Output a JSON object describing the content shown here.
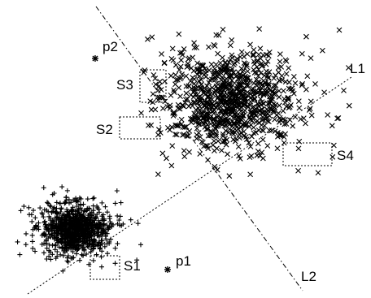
{
  "labels": {
    "p1": "p1",
    "p2": "p2",
    "s1": "S1",
    "s2": "S2",
    "s3": "S3",
    "s4": "S4",
    "l1": "L1",
    "l2": "L2"
  },
  "markers": {
    "cluster_upper": "x",
    "cluster_lower": "+",
    "points": "*"
  },
  "colors": {
    "ink": "#000000",
    "background": "#ffffff"
  }
}
